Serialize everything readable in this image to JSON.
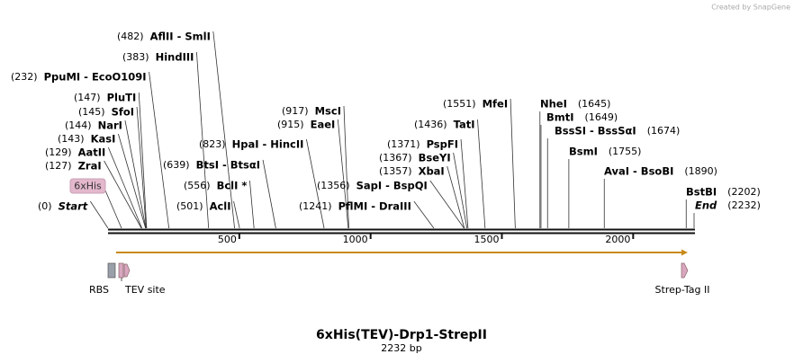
{
  "watermark": "Created by SnapGene",
  "title": "6xHis(TEV)-Drp1-StrepII",
  "length": "2232 bp",
  "ruler": {
    "ticks": [
      500,
      1000,
      1500,
      2000
    ]
  },
  "sites": [
    {
      "name": "AflII  - SmlI",
      "position": {
        "value": 482,
        "label": "(482)"
      }
    },
    {
      "name": "HindIII",
      "position": {
        "value": 383,
        "label": "(383)"
      }
    },
    {
      "name": "PpuMI  - EcoO109I",
      "position": {
        "value": 232,
        "label": "(232)"
      }
    },
    {
      "name": "PluTI",
      "position": {
        "value": 147,
        "label": "(147)"
      }
    },
    {
      "name": "SfoI",
      "position": {
        "value": 145,
        "label": "(145)"
      }
    },
    {
      "name": "NarI",
      "position": {
        "value": 144,
        "label": "(144)"
      }
    },
    {
      "name": "KasI",
      "position": {
        "value": 143,
        "label": "(143)"
      }
    },
    {
      "name": "AatII",
      "position": {
        "value": 129,
        "label": "(129)"
      }
    },
    {
      "name": "ZraI",
      "position": {
        "value": 127,
        "label": "(127)"
      }
    },
    {
      "name": "Start",
      "position": {
        "value": 0,
        "label": "(0)"
      }
    },
    {
      "name": "HpaI  - HincII",
      "position": {
        "value": 823,
        "label": "(823)"
      }
    },
    {
      "name": "BtsI  - BtsαI",
      "position": {
        "value": 639,
        "label": "(639)"
      }
    },
    {
      "name": "BclI *",
      "position": {
        "value": 556,
        "label": "(556)"
      }
    },
    {
      "name": "AclI",
      "position": {
        "value": 501,
        "label": "(501)"
      }
    },
    {
      "name": "MscI",
      "position": {
        "value": 917,
        "label": "(917)"
      }
    },
    {
      "name": "EaeI",
      "position": {
        "value": 915,
        "label": "(915)"
      }
    },
    {
      "name": "SapI  - BspQI",
      "position": {
        "value": 1356,
        "label": "(1356)"
      }
    },
    {
      "name": "PflMI  - DraIII",
      "position": {
        "value": 1241,
        "label": "(1241)"
      }
    },
    {
      "name": "MfeI",
      "position": {
        "value": 1551,
        "label": "(1551)"
      }
    },
    {
      "name": "TatI",
      "position": {
        "value": 1436,
        "label": "(1436)"
      }
    },
    {
      "name": "PspFI",
      "position": {
        "value": 1371,
        "label": "(1371)"
      }
    },
    {
      "name": "BseYI",
      "position": {
        "value": 1367,
        "label": "(1367)"
      }
    },
    {
      "name": "XbaI",
      "position": {
        "value": 1357,
        "label": "(1357)"
      }
    },
    {
      "name": "NheI",
      "position": {
        "value": 1645,
        "label": "(1645)"
      }
    },
    {
      "name": "BmtI",
      "position": {
        "value": 1649,
        "label": "(1649)"
      }
    },
    {
      "name": "BssSI  - BssSαI",
      "position": {
        "value": 1674,
        "label": "(1674)"
      }
    },
    {
      "name": "BsmI",
      "position": {
        "value": 1755,
        "label": "(1755)"
      }
    },
    {
      "name": "AvaI  - BsoBI",
      "position": {
        "value": 1890,
        "label": "(1890)"
      }
    },
    {
      "name": "BstBI",
      "position": {
        "value": 2202,
        "label": "(2202)"
      }
    },
    {
      "name": "End",
      "position": {
        "value": 2232,
        "label": "(2232)"
      }
    }
  ],
  "features": [
    {
      "label": "6xHis"
    },
    {
      "label": "RBS"
    },
    {
      "label": "TEV site"
    },
    {
      "label": "Strep-Tag II"
    }
  ]
}
